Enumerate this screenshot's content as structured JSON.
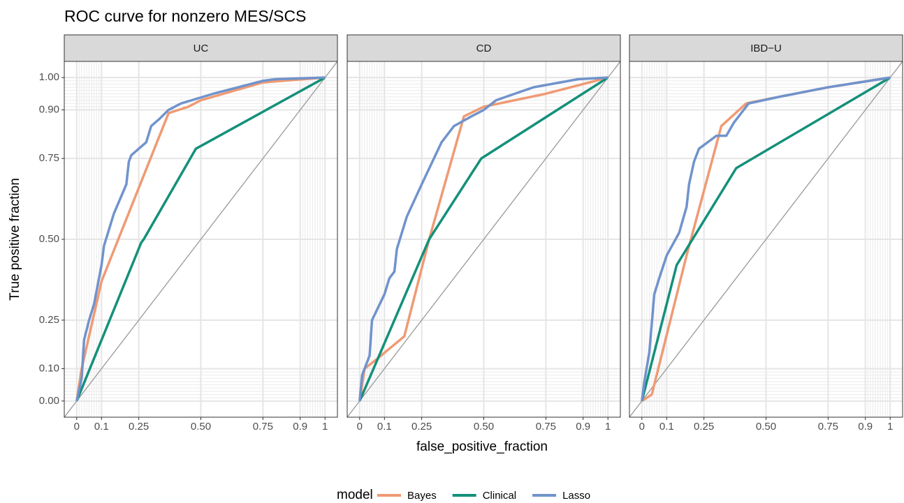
{
  "title": "ROC curve for nonzero MES/SCS",
  "x_label": "false_positive_fraction",
  "y_label": "True positive fraction",
  "legend_title": "model",
  "minor_ticks": [
    0.01,
    0.02,
    0.03,
    0.04,
    0.05,
    0.06,
    0.07,
    0.08,
    0.09,
    0.91,
    0.92,
    0.93,
    0.94,
    0.95,
    0.96,
    0.97,
    0.98,
    0.99
  ],
  "chart_data": [
    {
      "type": "line",
      "title": "UC",
      "xlim": [
        -0.05,
        1.05
      ],
      "ylim": [
        -0.05,
        1.05
      ],
      "xticks": [
        0,
        0.1,
        0.25,
        {
          "value": 0.5,
          "label": "0.50"
        },
        0.75,
        0.9,
        1
      ],
      "yticks": [
        {
          "value": 0,
          "label": "0.00"
        },
        {
          "value": 0.1,
          "label": "0.10"
        },
        0.25,
        {
          "value": 0.5,
          "label": "0.50"
        },
        0.75,
        {
          "value": 0.9,
          "label": "0.90"
        },
        {
          "value": 1,
          "label": "1.00"
        }
      ],
      "grid": true,
      "series": [
        {
          "name": "Bayes",
          "color": "#ef9a74",
          "x": [
            0,
            0.02,
            0.1,
            0.37,
            0.45,
            0.5,
            0.75,
            1
          ],
          "values": [
            0,
            0.1,
            0.37,
            0.89,
            0.91,
            0.93,
            0.985,
            1
          ]
        },
        {
          "name": "Clinical",
          "color": "#14907a",
          "x": [
            0,
            0.26,
            0.27,
            0.48,
            1
          ],
          "values": [
            0,
            0.49,
            0.5,
            0.78,
            1
          ]
        },
        {
          "name": "Lasso",
          "color": "#7093cc",
          "x": [
            0,
            0.02,
            0.03,
            0.05,
            0.07,
            0.09,
            0.1,
            0.11,
            0.15,
            0.2,
            0.21,
            0.22,
            0.25,
            0.28,
            0.3,
            0.33,
            0.37,
            0.42,
            0.55,
            0.75,
            0.8,
            1
          ],
          "values": [
            0,
            0.07,
            0.19,
            0.25,
            0.3,
            0.38,
            0.42,
            0.48,
            0.58,
            0.67,
            0.74,
            0.76,
            0.78,
            0.8,
            0.85,
            0.87,
            0.9,
            0.92,
            0.95,
            0.99,
            0.995,
            1
          ]
        }
      ]
    },
    {
      "type": "line",
      "title": "CD",
      "xlim": [
        -0.05,
        1.05
      ],
      "ylim": [
        -0.05,
        1.05
      ],
      "xticks": [
        0,
        0.1,
        0.25,
        {
          "value": 0.5,
          "label": "0.50"
        },
        0.75,
        0.9,
        1
      ],
      "grid": true,
      "series": [
        {
          "name": "Bayes",
          "color": "#ef9a74",
          "x": [
            0,
            0.02,
            0.07,
            0.18,
            0.28,
            0.42,
            0.5,
            0.75,
            1
          ],
          "values": [
            0,
            0.1,
            0.13,
            0.2,
            0.5,
            0.88,
            0.91,
            0.95,
            1
          ]
        },
        {
          "name": "Clinical",
          "color": "#14907a",
          "x": [
            0,
            0.28,
            0.49,
            1
          ],
          "values": [
            0,
            0.5,
            0.75,
            1
          ]
        },
        {
          "name": "Lasso",
          "color": "#7093cc",
          "x": [
            0,
            0.01,
            0.04,
            0.05,
            0.1,
            0.12,
            0.14,
            0.15,
            0.19,
            0.25,
            0.33,
            0.38,
            0.45,
            0.5,
            0.55,
            0.7,
            0.88,
            1
          ],
          "values": [
            0,
            0.08,
            0.14,
            0.25,
            0.33,
            0.38,
            0.4,
            0.47,
            0.57,
            0.67,
            0.8,
            0.85,
            0.88,
            0.9,
            0.93,
            0.97,
            0.995,
            1
          ]
        }
      ]
    },
    {
      "type": "line",
      "title": "IBD−U",
      "xlim": [
        -0.05,
        1.05
      ],
      "ylim": [
        -0.05,
        1.05
      ],
      "xticks": [
        0,
        0.1,
        0.25,
        {
          "value": 0.5,
          "label": "0.50"
        },
        0.75,
        0.9,
        1
      ],
      "grid": true,
      "series": [
        {
          "name": "Bayes",
          "color": "#ef9a74",
          "x": [
            0,
            0.04,
            0.18,
            0.32,
            0.42,
            0.55,
            0.75,
            1
          ],
          "values": [
            0,
            0.02,
            0.45,
            0.85,
            0.92,
            0.94,
            0.97,
            1
          ]
        },
        {
          "name": "Clinical",
          "color": "#14907a",
          "x": [
            0,
            0.14,
            0.38,
            1
          ],
          "values": [
            0,
            0.42,
            0.72,
            1
          ]
        },
        {
          "name": "Lasso",
          "color": "#7093cc",
          "x": [
            0,
            0.01,
            0.03,
            0.05,
            0.07,
            0.1,
            0.15,
            0.18,
            0.19,
            0.21,
            0.23,
            0.3,
            0.34,
            0.37,
            0.43,
            0.55,
            0.75,
            1
          ],
          "values": [
            0,
            0.06,
            0.15,
            0.33,
            0.38,
            0.45,
            0.52,
            0.6,
            0.67,
            0.74,
            0.78,
            0.82,
            0.82,
            0.86,
            0.92,
            0.94,
            0.97,
            1
          ]
        }
      ]
    }
  ]
}
